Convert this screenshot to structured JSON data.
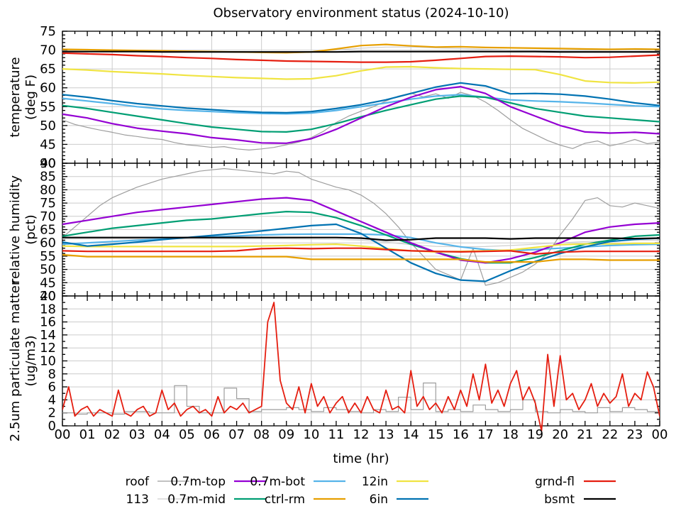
{
  "title": "Observatory environment status (2024-10-10)",
  "x_axis": {
    "label": "time (hr)",
    "min": 0,
    "max": 24,
    "major_tick": 1,
    "minor_tick": 0.5,
    "grid_every": 2,
    "tick_labels": [
      "00",
      "01",
      "02",
      "03",
      "04",
      "05",
      "06",
      "07",
      "08",
      "09",
      "10",
      "11",
      "12",
      "13",
      "14",
      "15",
      "16",
      "17",
      "18",
      "19",
      "20",
      "21",
      "22",
      "23",
      "00"
    ]
  },
  "legend": {
    "rows": [
      [
        {
          "label": "roof",
          "color": "#9e9e9e",
          "width": 1.2
        },
        {
          "label": "0.7m-top",
          "color": "#9400d3",
          "width": 2.2
        },
        {
          "label": "0.7m-bot",
          "color": "#56b4e9",
          "width": 2.2
        },
        {
          "label": "12in",
          "color": "#f0e442",
          "width": 2.2
        },
        {
          "label": "grnd-fl",
          "color": "#e51e10",
          "width": 2.2
        }
      ],
      [
        {
          "label": "113",
          "color": "#cfcfcf",
          "width": 1.2
        },
        {
          "label": "0.7m-mid",
          "color": "#009e73",
          "width": 2.2
        },
        {
          "label": "ctrl-rm",
          "color": "#e69f00",
          "width": 2.2
        },
        {
          "label": "6in",
          "color": "#0072b2",
          "width": 2.2
        },
        {
          "label": "bsmt",
          "color": "#000000",
          "width": 2.2
        }
      ]
    ]
  },
  "chart_data": [
    {
      "type": "line",
      "name": "temperature",
      "ylabel_lines": [
        "temperature",
        "(deg F)"
      ],
      "ylim": [
        40,
        75
      ],
      "ytick_major": 5,
      "ytick_minor": 1,
      "ytick_labels": [
        75,
        70,
        65,
        60,
        55,
        50,
        45,
        40
      ],
      "grid": true,
      "series": [
        {
          "name": "113",
          "color": "#cfcfcf",
          "width": 1.2,
          "x_start": 0,
          "x_step": 1,
          "values": [
            69.8,
            69.7,
            69.7,
            69.6,
            69.6,
            69.5,
            69.5,
            69.4,
            69.4,
            69.5,
            69.6,
            70.0,
            70.5,
            70.8,
            70.8,
            70.6,
            70.4,
            70.2,
            70.0,
            69.9,
            69.8,
            69.8,
            69.7,
            69.7,
            69.7
          ]
        },
        {
          "name": "roof",
          "color": "#9e9e9e",
          "width": 1.2,
          "x_start": 0,
          "x_step": 0.5,
          "values": [
            51.5,
            50.3,
            49.5,
            48.8,
            48.2,
            47.5,
            47.1,
            46.6,
            46.3,
            45.5,
            44.9,
            44.6,
            44.2,
            44.4,
            43.8,
            43.5,
            43.8,
            44.2,
            44.9,
            45.6,
            46.8,
            48.5,
            50.8,
            52.5,
            53.8,
            55.0,
            56.5,
            57.8,
            58.6,
            57.6,
            58.4,
            57.2,
            58.8,
            57.9,
            56.2,
            54.0,
            51.5,
            49.2,
            47.6,
            46.0,
            44.8,
            43.9,
            45.3,
            45.9,
            44.6,
            45.3,
            46.3,
            45.2,
            45.6
          ]
        },
        {
          "name": "0.7m-bot",
          "color": "#56b4e9",
          "width": 2.2,
          "x_start": 0,
          "x_step": 1,
          "values": [
            57.2,
            56.5,
            55.8,
            55.0,
            54.4,
            54.0,
            53.7,
            53.4,
            53.2,
            53.1,
            53.3,
            54.0,
            55.0,
            56.0,
            57.0,
            57.8,
            58.2,
            57.5,
            56.8,
            56.5,
            56.3,
            56.0,
            55.6,
            55.2,
            55.0
          ]
        },
        {
          "name": "0.7m-mid",
          "color": "#009e73",
          "width": 2.2,
          "x_start": 0,
          "x_step": 1,
          "values": [
            55.3,
            54.5,
            53.5,
            52.5,
            51.5,
            50.5,
            49.6,
            49.0,
            48.4,
            48.3,
            49.0,
            50.5,
            52.3,
            54.0,
            55.5,
            57.0,
            57.8,
            57.5,
            56.0,
            54.5,
            53.5,
            52.5,
            52.0,
            51.5,
            51.0
          ]
        },
        {
          "name": "0.7m-top",
          "color": "#9400d3",
          "width": 2.2,
          "x_start": 0,
          "x_step": 1,
          "values": [
            53.0,
            52.0,
            50.5,
            49.3,
            48.5,
            47.8,
            46.8,
            46.2,
            45.4,
            45.3,
            46.5,
            49.0,
            52.0,
            55.0,
            57.5,
            59.5,
            60.3,
            58.5,
            55.0,
            52.5,
            50.0,
            48.3,
            48.0,
            48.2,
            47.8
          ]
        },
        {
          "name": "12in",
          "color": "#f0e442",
          "width": 2.2,
          "x_start": 0,
          "x_step": 1,
          "values": [
            65.0,
            64.7,
            64.3,
            64.0,
            63.7,
            63.3,
            63.0,
            62.7,
            62.5,
            62.3,
            62.4,
            63.2,
            64.5,
            65.5,
            65.6,
            65.3,
            65.1,
            65.0,
            64.9,
            64.8,
            63.5,
            61.8,
            61.4,
            61.3,
            61.5
          ]
        },
        {
          "name": "6in",
          "color": "#0072b2",
          "width": 2.2,
          "x_start": 0,
          "x_step": 1,
          "values": [
            58.2,
            57.5,
            56.6,
            55.8,
            55.2,
            54.6,
            54.2,
            53.8,
            53.5,
            53.4,
            53.7,
            54.5,
            55.5,
            56.8,
            58.5,
            60.2,
            61.3,
            60.5,
            58.4,
            58.5,
            58.3,
            57.8,
            57.0,
            56.0,
            55.3
          ]
        },
        {
          "name": "ctrl-rm",
          "color": "#e69f00",
          "width": 2.2,
          "x_start": 0,
          "x_step": 1,
          "values": [
            70.2,
            70.1,
            70.0,
            69.9,
            69.8,
            69.7,
            69.6,
            69.5,
            69.4,
            69.3,
            69.5,
            70.3,
            71.2,
            71.5,
            71.1,
            70.8,
            70.9,
            70.7,
            70.6,
            70.5,
            70.4,
            70.3,
            70.2,
            70.3,
            70.2
          ]
        },
        {
          "name": "grnd-fl",
          "color": "#e51e10",
          "width": 2.2,
          "x_start": 0,
          "x_step": 1,
          "values": [
            69.2,
            69.0,
            68.8,
            68.5,
            68.3,
            68.0,
            67.8,
            67.5,
            67.3,
            67.1,
            67.0,
            66.9,
            66.8,
            66.8,
            66.9,
            67.3,
            67.8,
            68.3,
            68.4,
            68.3,
            68.2,
            68.0,
            68.1,
            68.4,
            68.7
          ]
        },
        {
          "name": "bsmt",
          "color": "#000000",
          "width": 2.2,
          "x_start": 0,
          "x_step": 1,
          "values": [
            69.6,
            69.6,
            69.6,
            69.6,
            69.5,
            69.5,
            69.5,
            69.5,
            69.5,
            69.5,
            69.5,
            69.5,
            69.6,
            69.6,
            69.6,
            69.6,
            69.6,
            69.6,
            69.6,
            69.6,
            69.5,
            69.5,
            69.5,
            69.5,
            69.5
          ]
        }
      ]
    },
    {
      "type": "line",
      "name": "relative-humidity",
      "ylabel_lines": [
        "relative humidity",
        "(pct)"
      ],
      "ylim": [
        40,
        90
      ],
      "ytick_major": 5,
      "ytick_minor": 1,
      "ytick_labels": [
        90,
        85,
        80,
        75,
        70,
        65,
        60,
        55,
        50,
        45,
        40
      ],
      "grid": true,
      "series": [
        {
          "name": "113",
          "color": "#cfcfcf",
          "width": 1.2,
          "x_start": 0,
          "x_step": 1,
          "values": [
            61.5,
            61.5,
            61.5,
            61.5,
            61.5,
            61.5,
            61.5,
            61.5,
            61.5,
            61.5,
            61.4,
            61.3,
            61.0,
            60.3,
            59.3,
            58.7,
            58.5,
            58.6,
            59.0,
            59.5,
            60.0,
            60.5,
            60.8,
            61.0,
            61.0
          ]
        },
        {
          "name": "roof",
          "color": "#9e9e9e",
          "width": 1.2,
          "x_start": 0,
          "x_step": 0.5,
          "values": [
            62,
            66,
            70,
            74,
            77,
            79,
            81,
            82.5,
            84,
            85,
            86,
            87,
            87.5,
            88,
            87.5,
            87,
            86.5,
            86,
            87,
            86.5,
            84,
            82.5,
            81,
            80,
            78,
            75,
            71,
            66,
            60,
            55,
            50,
            48,
            46,
            58,
            44,
            45,
            47,
            49,
            52,
            56,
            63,
            69,
            76,
            77,
            74,
            73.5,
            75,
            74,
            73
          ]
        },
        {
          "name": "0.7m-bot",
          "color": "#56b4e9",
          "width": 2.2,
          "x_start": 0,
          "x_step": 1,
          "values": [
            59.5,
            60.0,
            60.5,
            61.0,
            61.5,
            62.0,
            62.3,
            62.6,
            63.0,
            63.2,
            63.3,
            63.3,
            63.3,
            63.0,
            62.0,
            60.0,
            58.5,
            57.5,
            57.0,
            57.5,
            58.0,
            58.5,
            59.0,
            59.3,
            59.5
          ]
        },
        {
          "name": "0.7m-mid",
          "color": "#009e73",
          "width": 2.2,
          "x_start": 0,
          "x_step": 1,
          "values": [
            62.5,
            64.0,
            65.5,
            66.5,
            67.5,
            68.5,
            69.0,
            70.0,
            71.0,
            71.8,
            71.5,
            69.5,
            66.5,
            63.0,
            59.5,
            56.5,
            54.0,
            52.5,
            52.5,
            54.5,
            57.0,
            59.5,
            61.0,
            62.5,
            63.0
          ]
        },
        {
          "name": "0.7m-top",
          "color": "#9400d3",
          "width": 2.2,
          "x_start": 0,
          "x_step": 1,
          "values": [
            67.0,
            68.5,
            70.0,
            71.5,
            72.5,
            73.5,
            74.5,
            75.5,
            76.5,
            77.0,
            76.0,
            72.0,
            68.0,
            64.0,
            60.0,
            56.5,
            53.5,
            52.5,
            54.0,
            56.5,
            60.0,
            64.0,
            66.0,
            67.0,
            67.5
          ]
        },
        {
          "name": "12in",
          "color": "#f0e442",
          "width": 2.2,
          "x_start": 0,
          "x_step": 1,
          "values": [
            58.8,
            58.6,
            58.6,
            58.6,
            58.6,
            58.6,
            58.6,
            58.6,
            58.8,
            59.0,
            59.3,
            59.5,
            58.8,
            57.8,
            57.0,
            56.6,
            56.8,
            57.0,
            57.3,
            58.3,
            59.3,
            59.6,
            59.6,
            59.8,
            59.8
          ]
        },
        {
          "name": "6in",
          "color": "#0072b2",
          "width": 2.2,
          "x_start": 0,
          "x_step": 1,
          "values": [
            60.3,
            58.8,
            59.5,
            60.3,
            61.2,
            62.0,
            62.8,
            63.6,
            64.5,
            65.5,
            66.5,
            67.0,
            63.5,
            58.0,
            52.5,
            48.5,
            46.0,
            45.5,
            49.5,
            53.0,
            56.0,
            58.5,
            60.5,
            61.3,
            61.8
          ]
        },
        {
          "name": "ctrl-rm",
          "color": "#e69f00",
          "width": 2.2,
          "x_start": 0,
          "x_step": 1,
          "values": [
            55.5,
            54.8,
            54.8,
            54.8,
            54.8,
            54.8,
            54.8,
            54.8,
            54.8,
            54.8,
            53.8,
            53.8,
            53.8,
            53.8,
            53.8,
            53.8,
            53.8,
            52.8,
            52.8,
            52.8,
            53.8,
            53.8,
            53.5,
            53.5,
            53.5
          ]
        },
        {
          "name": "grnd-fl",
          "color": "#e51e10",
          "width": 2.2,
          "x_start": 0,
          "x_step": 1,
          "values": [
            57.0,
            56.8,
            56.8,
            56.8,
            56.8,
            56.8,
            56.8,
            57.0,
            57.8,
            58.0,
            57.8,
            58.0,
            58.0,
            57.5,
            57.0,
            56.8,
            56.6,
            56.8,
            57.0,
            55.8,
            56.5,
            56.8,
            56.8,
            56.8,
            56.8
          ]
        },
        {
          "name": "bsmt",
          "color": "#000000",
          "width": 2.2,
          "x_start": 0,
          "x_step": 1,
          "values": [
            62.0,
            62.0,
            62.0,
            62.0,
            62.0,
            62.0,
            62.0,
            62.0,
            62.0,
            62.0,
            62.0,
            62.0,
            61.8,
            61.0,
            61.2,
            61.8,
            61.8,
            61.8,
            61.5,
            61.8,
            61.8,
            61.8,
            61.8,
            61.6,
            61.8
          ]
        }
      ]
    },
    {
      "type": "line",
      "name": "particulate-matter-2.5um",
      "ylabel_lines": [
        "2.5um particulate matter",
        "(ug/m3)"
      ],
      "ylim": [
        0,
        20
      ],
      "ytick_major": 2,
      "ytick_minor": 1,
      "ytick_labels": [
        20,
        18,
        16,
        14,
        12,
        10,
        8,
        6,
        4,
        2,
        0
      ],
      "grid": true,
      "series": [
        {
          "name": "roof",
          "color": "#9e9e9e",
          "width": 1.2,
          "mode": "steps",
          "x_start": 0,
          "x_step": 0.5,
          "values": [
            2.0,
            1.8,
            2.0,
            2.0,
            1.8,
            2.2,
            2.2,
            2.0,
            2.0,
            6.2,
            3.0,
            2.0,
            2.0,
            5.8,
            4.2,
            2.2,
            2.5,
            2.5,
            2.8,
            2.5,
            2.2,
            2.8,
            2.5,
            2.2,
            2.0,
            2.5,
            2.2,
            4.4,
            2.5,
            6.6,
            2.2,
            2.5,
            2.2,
            3.2,
            2.5,
            2.2,
            2.5,
            4.0,
            2.2,
            2.0,
            2.5,
            2.2,
            2.0,
            2.8,
            2.2,
            2.8,
            2.5,
            2.2,
            2.0
          ]
        },
        {
          "name": "grnd-fl",
          "color": "#e51e10",
          "width": 1.8,
          "x_start": 0,
          "x_step": 0.25,
          "values": [
            2.5,
            6,
            1.5,
            2.5,
            3,
            1.5,
            2.5,
            2,
            1.5,
            5.5,
            2,
            1.5,
            2.5,
            3,
            1.5,
            2,
            5.5,
            2.5,
            3.5,
            1.5,
            2.5,
            3,
            2,
            2.5,
            1.5,
            4.5,
            2,
            3,
            2.5,
            3.5,
            2,
            2.5,
            3,
            16,
            19,
            7,
            3.5,
            2.5,
            6,
            2,
            6.5,
            3,
            4.5,
            2,
            3.5,
            4.5,
            2,
            3.5,
            2,
            4.5,
            2.5,
            2,
            5.5,
            2.5,
            3,
            2,
            8.5,
            3,
            4.5,
            2.5,
            3.5,
            2,
            4.5,
            2.5,
            5.5,
            3,
            8,
            4,
            9.5,
            3.5,
            5.5,
            3,
            6.5,
            8.5,
            4,
            6,
            3.5,
            -0.8,
            11,
            3,
            10.8,
            4,
            5,
            2.5,
            4,
            6.5,
            3,
            5,
            3.5,
            4.5,
            8,
            3,
            5,
            4,
            8.3,
            6,
            1.5
          ]
        }
      ]
    }
  ]
}
